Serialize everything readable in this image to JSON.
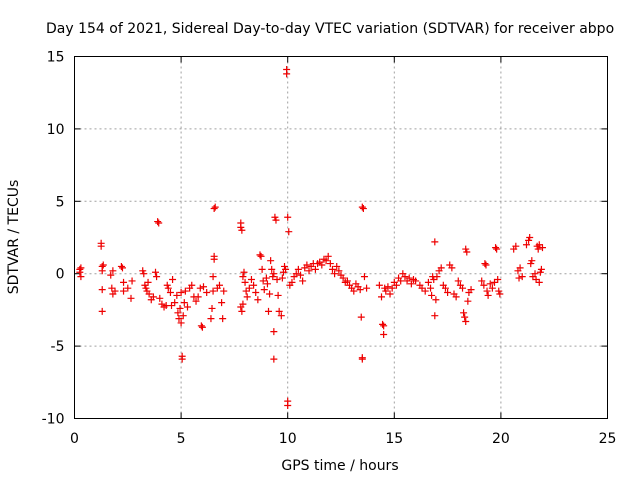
{
  "chart_data": {
    "type": "scatter",
    "title": "Day 154 of 2021, Sidereal Day-to-day VTEC variation (SDTVAR) for receiver abpo",
    "xlabel": "GPS time / hours",
    "ylabel": "SDTVAR / TECUs",
    "xlim": [
      0,
      25
    ],
    "ylim": [
      -10,
      15
    ],
    "xticks": [
      "0",
      "5",
      "10",
      "15",
      "20",
      "25"
    ],
    "yticks": [
      "-10",
      "-5",
      "0",
      "5",
      "10",
      "15"
    ],
    "grid": true,
    "marker": "+",
    "color": "#ee0000",
    "series": [
      {
        "name": "SDTVAR",
        "points": [
          [
            0.25,
            0.3
          ],
          [
            0.25,
            0.1
          ],
          [
            0.3,
            -0.2
          ],
          [
            0.3,
            0.4
          ],
          [
            1.25,
            2.1
          ],
          [
            1.25,
            1.9
          ],
          [
            1.3,
            0.5
          ],
          [
            1.3,
            0.2
          ],
          [
            1.3,
            -1.1
          ],
          [
            1.3,
            -2.6
          ],
          [
            1.35,
            0.6
          ],
          [
            1.7,
            -0.1
          ],
          [
            1.8,
            0.2
          ],
          [
            1.75,
            -1.0
          ],
          [
            1.8,
            -1.4
          ],
          [
            1.9,
            -1.2
          ],
          [
            2.2,
            0.5
          ],
          [
            2.25,
            0.4
          ],
          [
            2.3,
            -1.2
          ],
          [
            2.3,
            -0.6
          ],
          [
            2.5,
            -1.0
          ],
          [
            2.65,
            -1.7
          ],
          [
            2.7,
            -0.5
          ],
          [
            3.2,
            0.2
          ],
          [
            3.25,
            0.0
          ],
          [
            3.3,
            -0.8
          ],
          [
            3.35,
            -1.0
          ],
          [
            3.4,
            -1.2
          ],
          [
            3.45,
            -0.6
          ],
          [
            3.5,
            -1.4
          ],
          [
            3.6,
            -1.8
          ],
          [
            3.7,
            -1.6
          ],
          [
            3.8,
            0.1
          ],
          [
            3.85,
            -0.2
          ],
          [
            3.9,
            3.6
          ],
          [
            3.95,
            3.5
          ],
          [
            4.0,
            -1.7
          ],
          [
            4.1,
            -2.1
          ],
          [
            4.2,
            -2.3
          ],
          [
            4.3,
            -2.2
          ],
          [
            4.35,
            -0.8
          ],
          [
            4.4,
            -1.0
          ],
          [
            4.5,
            -1.3
          ],
          [
            4.55,
            -2.2
          ],
          [
            4.6,
            -0.4
          ],
          [
            4.7,
            -2.0
          ],
          [
            4.8,
            -1.5
          ],
          [
            4.85,
            -2.7
          ],
          [
            4.9,
            -3.1
          ],
          [
            4.95,
            -2.4
          ],
          [
            5.0,
            -3.4
          ],
          [
            5.0,
            -1.3
          ],
          [
            5.05,
            -5.7
          ],
          [
            5.05,
            -5.9
          ],
          [
            5.1,
            -2.9
          ],
          [
            5.15,
            -2.0
          ],
          [
            5.2,
            -1.2
          ],
          [
            5.3,
            -2.3
          ],
          [
            5.4,
            -1.0
          ],
          [
            5.5,
            -0.8
          ],
          [
            5.6,
            -1.6
          ],
          [
            5.7,
            -1.9
          ],
          [
            5.8,
            -1.6
          ],
          [
            5.9,
            -1.0
          ],
          [
            5.95,
            -3.6
          ],
          [
            6.0,
            -3.7
          ],
          [
            6.05,
            -0.9
          ],
          [
            6.2,
            -1.3
          ],
          [
            6.4,
            -3.1
          ],
          [
            6.45,
            -2.4
          ],
          [
            6.5,
            -1.2
          ],
          [
            6.5,
            -0.2
          ],
          [
            6.55,
            1.0
          ],
          [
            6.55,
            1.2
          ],
          [
            6.55,
            4.5
          ],
          [
            6.6,
            4.6
          ],
          [
            6.7,
            -1.0
          ],
          [
            6.8,
            -0.8
          ],
          [
            6.9,
            -2.0
          ],
          [
            6.95,
            -3.1
          ],
          [
            7.0,
            -1.2
          ],
          [
            7.8,
            3.5
          ],
          [
            7.8,
            3.2
          ],
          [
            7.85,
            3.0
          ],
          [
            7.8,
            -2.3
          ],
          [
            7.85,
            -2.6
          ],
          [
            7.9,
            -2.1
          ],
          [
            7.9,
            -0.2
          ],
          [
            7.95,
            0.1
          ],
          [
            8.0,
            -0.6
          ],
          [
            8.05,
            -1.2
          ],
          [
            8.1,
            -1.6
          ],
          [
            8.2,
            -1.0
          ],
          [
            8.3,
            -0.4
          ],
          [
            8.4,
            -0.8
          ],
          [
            8.5,
            -1.3
          ],
          [
            8.6,
            -1.8
          ],
          [
            8.7,
            1.3
          ],
          [
            8.75,
            1.2
          ],
          [
            8.8,
            0.3
          ],
          [
            8.85,
            -0.5
          ],
          [
            8.9,
            -1.1
          ],
          [
            9.0,
            -0.3
          ],
          [
            9.05,
            -0.7
          ],
          [
            9.1,
            -2.6
          ],
          [
            9.15,
            -1.4
          ],
          [
            9.2,
            0.9
          ],
          [
            9.25,
            0.3
          ],
          [
            9.3,
            -0.2
          ],
          [
            9.35,
            0.0
          ],
          [
            9.35,
            -4.0
          ],
          [
            9.35,
            -5.9
          ],
          [
            9.4,
            3.9
          ],
          [
            9.45,
            3.7
          ],
          [
            9.5,
            -0.4
          ],
          [
            9.55,
            -1.5
          ],
          [
            9.6,
            -2.6
          ],
          [
            9.7,
            -2.9
          ],
          [
            9.75,
            -0.3
          ],
          [
            9.8,
            0.1
          ],
          [
            9.85,
            0.5
          ],
          [
            9.9,
            0.3
          ],
          [
            9.95,
            14.1
          ],
          [
            9.95,
            13.8
          ],
          [
            10.0,
            -8.8
          ],
          [
            10.0,
            -9.1
          ],
          [
            10.0,
            3.9
          ],
          [
            10.05,
            2.9
          ],
          [
            10.1,
            -0.8
          ],
          [
            10.2,
            -0.6
          ],
          [
            10.3,
            -0.2
          ],
          [
            10.4,
            0.0
          ],
          [
            10.5,
            0.3
          ],
          [
            10.6,
            -0.1
          ],
          [
            10.7,
            -0.5
          ],
          [
            10.8,
            0.4
          ],
          [
            10.9,
            0.6
          ],
          [
            11.0,
            0.2
          ],
          [
            11.1,
            0.5
          ],
          [
            11.2,
            0.7
          ],
          [
            11.3,
            0.3
          ],
          [
            11.4,
            0.7
          ],
          [
            11.5,
            0.8
          ],
          [
            11.6,
            0.6
          ],
          [
            11.7,
            1.0
          ],
          [
            11.8,
            0.9
          ],
          [
            11.9,
            1.2
          ],
          [
            12.0,
            0.7
          ],
          [
            12.1,
            0.3
          ],
          [
            12.2,
            0.0
          ],
          [
            12.3,
            0.5
          ],
          [
            12.4,
            0.2
          ],
          [
            12.5,
            -0.1
          ],
          [
            12.6,
            -0.3
          ],
          [
            12.7,
            -0.6
          ],
          [
            12.8,
            -0.5
          ],
          [
            12.9,
            -0.8
          ],
          [
            13.0,
            -1.0
          ],
          [
            13.1,
            -1.2
          ],
          [
            13.2,
            -0.7
          ],
          [
            13.3,
            -0.9
          ],
          [
            13.4,
            -1.1
          ],
          [
            13.45,
            -3.0
          ],
          [
            13.5,
            -5.8
          ],
          [
            13.5,
            -5.9
          ],
          [
            13.5,
            4.6
          ],
          [
            13.55,
            4.5
          ],
          [
            13.6,
            -0.2
          ],
          [
            13.7,
            -1.0
          ],
          [
            14.3,
            -0.8
          ],
          [
            14.4,
            -1.6
          ],
          [
            14.45,
            -3.5
          ],
          [
            14.5,
            -4.2
          ],
          [
            14.5,
            -3.6
          ],
          [
            14.55,
            -1.0
          ],
          [
            14.6,
            -1.2
          ],
          [
            14.7,
            -0.9
          ],
          [
            14.8,
            -1.4
          ],
          [
            14.9,
            -1.0
          ],
          [
            15.0,
            -0.6
          ],
          [
            15.1,
            -0.8
          ],
          [
            15.2,
            -0.3
          ],
          [
            15.3,
            -0.5
          ],
          [
            15.4,
            0.0
          ],
          [
            15.5,
            -0.2
          ],
          [
            15.6,
            -0.5
          ],
          [
            15.7,
            -0.3
          ],
          [
            15.8,
            -0.7
          ],
          [
            15.9,
            -0.4
          ],
          [
            16.0,
            -0.5
          ],
          [
            16.2,
            -0.8
          ],
          [
            16.3,
            -1.0
          ],
          [
            16.45,
            -1.2
          ],
          [
            16.6,
            -0.6
          ],
          [
            16.7,
            -1.0
          ],
          [
            16.75,
            -1.5
          ],
          [
            16.8,
            -0.2
          ],
          [
            16.85,
            -0.4
          ],
          [
            16.9,
            2.2
          ],
          [
            16.9,
            -2.9
          ],
          [
            16.95,
            -1.8
          ],
          [
            17.0,
            -0.2
          ],
          [
            17.1,
            0.2
          ],
          [
            17.2,
            0.4
          ],
          [
            17.3,
            -0.8
          ],
          [
            17.4,
            -1.0
          ],
          [
            17.5,
            -1.3
          ],
          [
            17.6,
            0.6
          ],
          [
            17.7,
            0.4
          ],
          [
            17.8,
            -1.4
          ],
          [
            17.9,
            -1.6
          ],
          [
            18.0,
            -0.5
          ],
          [
            18.1,
            -0.8
          ],
          [
            18.2,
            -1.0
          ],
          [
            18.25,
            -2.7
          ],
          [
            18.3,
            -3.0
          ],
          [
            18.35,
            -3.3
          ],
          [
            18.35,
            1.7
          ],
          [
            18.4,
            1.5
          ],
          [
            18.45,
            -1.9
          ],
          [
            18.5,
            -1.3
          ],
          [
            18.6,
            -1.1
          ],
          [
            19.1,
            -0.5
          ],
          [
            19.2,
            -0.8
          ],
          [
            19.25,
            0.7
          ],
          [
            19.3,
            0.6
          ],
          [
            19.35,
            -1.2
          ],
          [
            19.4,
            -1.5
          ],
          [
            19.5,
            -0.7
          ],
          [
            19.6,
            -1.0
          ],
          [
            19.7,
            -0.6
          ],
          [
            19.75,
            1.8
          ],
          [
            19.8,
            1.7
          ],
          [
            19.85,
            -0.4
          ],
          [
            19.9,
            -1.2
          ],
          [
            19.95,
            -1.4
          ],
          [
            20.6,
            1.7
          ],
          [
            20.7,
            1.9
          ],
          [
            20.8,
            0.2
          ],
          [
            20.85,
            -0.3
          ],
          [
            20.9,
            0.4
          ],
          [
            21.0,
            -0.2
          ],
          [
            21.2,
            2.0
          ],
          [
            21.3,
            2.3
          ],
          [
            21.35,
            2.5
          ],
          [
            21.4,
            0.7
          ],
          [
            21.45,
            0.9
          ],
          [
            21.5,
            -0.2
          ],
          [
            21.6,
            0.0
          ],
          [
            21.65,
            -0.4
          ],
          [
            21.7,
            1.9
          ],
          [
            21.75,
            1.7
          ],
          [
            21.8,
            2.0
          ],
          [
            21.8,
            -0.6
          ],
          [
            21.85,
            0.1
          ],
          [
            21.9,
            0.3
          ],
          [
            21.95,
            1.8
          ]
        ]
      }
    ]
  }
}
